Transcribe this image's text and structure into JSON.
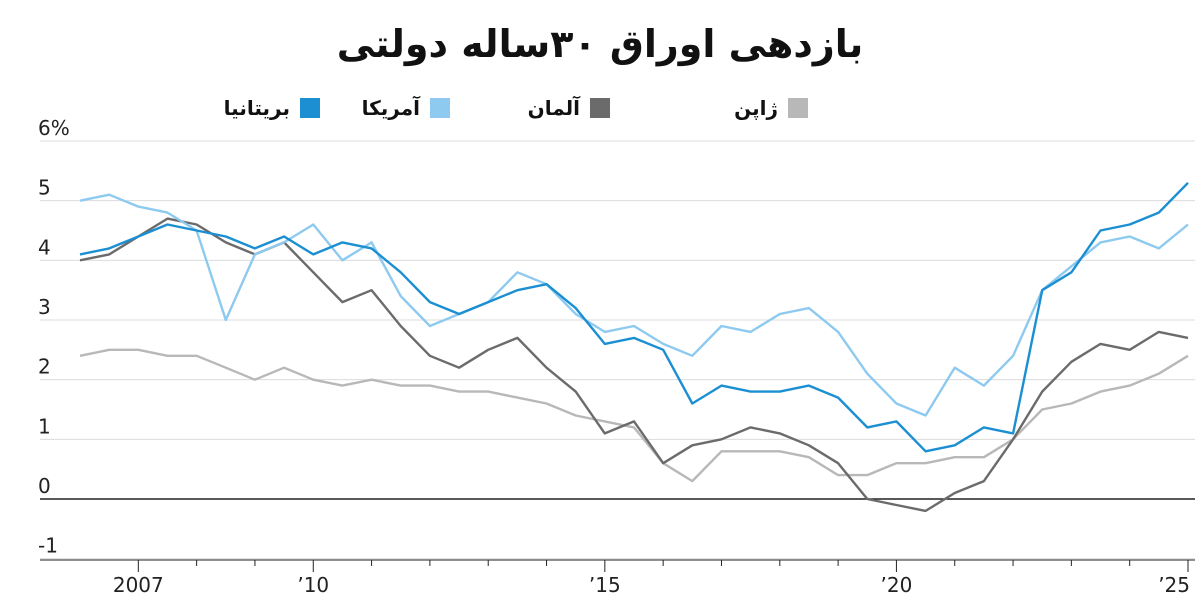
{
  "chart_data": {
    "type": "line",
    "title": "بازدهی اوراق ۳۰ساله دولتی",
    "y_unit": "%",
    "ylim": [
      -1,
      6
    ],
    "y_ticks": [
      -1,
      0,
      1,
      2,
      3,
      4,
      5,
      6
    ],
    "y_tick_labels": [
      "-1",
      "0",
      "1",
      "2",
      "3",
      "4",
      "5",
      "6%"
    ],
    "x_ticks": [
      2007,
      2010,
      2015,
      2020,
      2025
    ],
    "x_tick_labels": [
      "2007",
      "’10",
      "’15",
      "’20",
      "’25"
    ],
    "legend_position": "top",
    "grid": true,
    "series": [
      {
        "name": "بریتانیا",
        "color": "#1b8fd2",
        "x": [
          2006.0,
          2006.5,
          2007.0,
          2007.5,
          2008.0,
          2008.5,
          2009.0,
          2009.5,
          2010.0,
          2010.5,
          2011.0,
          2011.5,
          2012.0,
          2012.5,
          2013.0,
          2013.5,
          2014.0,
          2014.5,
          2015.0,
          2015.5,
          2016.0,
          2016.5,
          2017.0,
          2017.5,
          2018.0,
          2018.5,
          2019.0,
          2019.5,
          2020.0,
          2020.5,
          2021.0,
          2021.5,
          2022.0,
          2022.5,
          2023.0,
          2023.5,
          2024.0,
          2024.5,
          2025.0
        ],
        "y": [
          4.1,
          4.2,
          4.4,
          4.6,
          4.5,
          4.4,
          4.2,
          4.4,
          4.1,
          4.3,
          4.2,
          3.8,
          3.3,
          3.1,
          3.3,
          3.5,
          3.6,
          3.2,
          2.6,
          2.7,
          2.5,
          1.6,
          1.9,
          1.8,
          1.8,
          1.9,
          1.7,
          1.2,
          1.3,
          0.8,
          0.9,
          1.2,
          1.1,
          3.5,
          3.8,
          4.5,
          4.6,
          4.8,
          5.3
        ]
      },
      {
        "name": "آمریکا",
        "color": "#8ecaf0",
        "x": [
          2006.0,
          2006.5,
          2007.0,
          2007.5,
          2008.0,
          2008.5,
          2009.0,
          2009.5,
          2010.0,
          2010.5,
          2011.0,
          2011.5,
          2012.0,
          2012.5,
          2013.0,
          2013.5,
          2014.0,
          2014.5,
          2015.0,
          2015.5,
          2016.0,
          2016.5,
          2017.0,
          2017.5,
          2018.0,
          2018.5,
          2019.0,
          2019.5,
          2020.0,
          2020.5,
          2021.0,
          2021.5,
          2022.0,
          2022.5,
          2023.0,
          2023.5,
          2024.0,
          2024.5,
          2025.0
        ],
        "y": [
          5.0,
          5.1,
          4.9,
          4.8,
          4.5,
          3.0,
          4.1,
          4.3,
          4.6,
          4.0,
          4.3,
          3.4,
          2.9,
          3.1,
          3.3,
          3.8,
          3.6,
          3.1,
          2.8,
          2.9,
          2.6,
          2.4,
          2.9,
          2.8,
          3.1,
          3.2,
          2.8,
          2.1,
          1.6,
          1.4,
          2.2,
          1.9,
          2.4,
          3.5,
          3.9,
          4.3,
          4.4,
          4.2,
          4.6
        ]
      },
      {
        "name": "آلمان",
        "color": "#6b6b6b",
        "x": [
          2006.0,
          2006.5,
          2007.0,
          2007.5,
          2008.0,
          2008.5,
          2009.0,
          2009.5,
          2010.0,
          2010.5,
          2011.0,
          2011.5,
          2012.0,
          2012.5,
          2013.0,
          2013.5,
          2014.0,
          2014.5,
          2015.0,
          2015.5,
          2016.0,
          2016.5,
          2017.0,
          2017.5,
          2018.0,
          2018.5,
          2019.0,
          2019.5,
          2020.0,
          2020.5,
          2021.0,
          2021.5,
          2022.0,
          2022.5,
          2023.0,
          2023.5,
          2024.0,
          2024.5,
          2025.0
        ],
        "y": [
          4.0,
          4.1,
          4.4,
          4.7,
          4.6,
          4.3,
          4.1,
          4.3,
          3.8,
          3.3,
          3.5,
          2.9,
          2.4,
          2.2,
          2.5,
          2.7,
          2.2,
          1.8,
          1.1,
          1.3,
          0.6,
          0.9,
          1.0,
          1.2,
          1.1,
          0.9,
          0.6,
          0.0,
          -0.1,
          -0.2,
          0.1,
          0.3,
          1.0,
          1.8,
          2.3,
          2.6,
          2.5,
          2.8,
          2.7
        ]
      },
      {
        "name": "ژاپن",
        "color": "#b8b8b8",
        "x": [
          2006.0,
          2006.5,
          2007.0,
          2007.5,
          2008.0,
          2008.5,
          2009.0,
          2009.5,
          2010.0,
          2010.5,
          2011.0,
          2011.5,
          2012.0,
          2012.5,
          2013.0,
          2013.5,
          2014.0,
          2014.5,
          2015.0,
          2015.5,
          2016.0,
          2016.5,
          2017.0,
          2017.5,
          2018.0,
          2018.5,
          2019.0,
          2019.5,
          2020.0,
          2020.5,
          2021.0,
          2021.5,
          2022.0,
          2022.5,
          2023.0,
          2023.5,
          2024.0,
          2024.5,
          2025.0
        ],
        "y": [
          2.4,
          2.5,
          2.5,
          2.4,
          2.4,
          2.2,
          2.0,
          2.2,
          2.0,
          1.9,
          2.0,
          1.9,
          1.9,
          1.8,
          1.8,
          1.7,
          1.6,
          1.4,
          1.3,
          1.2,
          0.6,
          0.3,
          0.8,
          0.8,
          0.8,
          0.7,
          0.4,
          0.4,
          0.6,
          0.6,
          0.7,
          0.7,
          1.0,
          1.5,
          1.6,
          1.8,
          1.9,
          2.1,
          2.4
        ]
      }
    ]
  },
  "legend": {
    "uk": "بریتانیا",
    "us": "آمریکا",
    "germany": "آلمان",
    "japan": "ژاپن"
  }
}
